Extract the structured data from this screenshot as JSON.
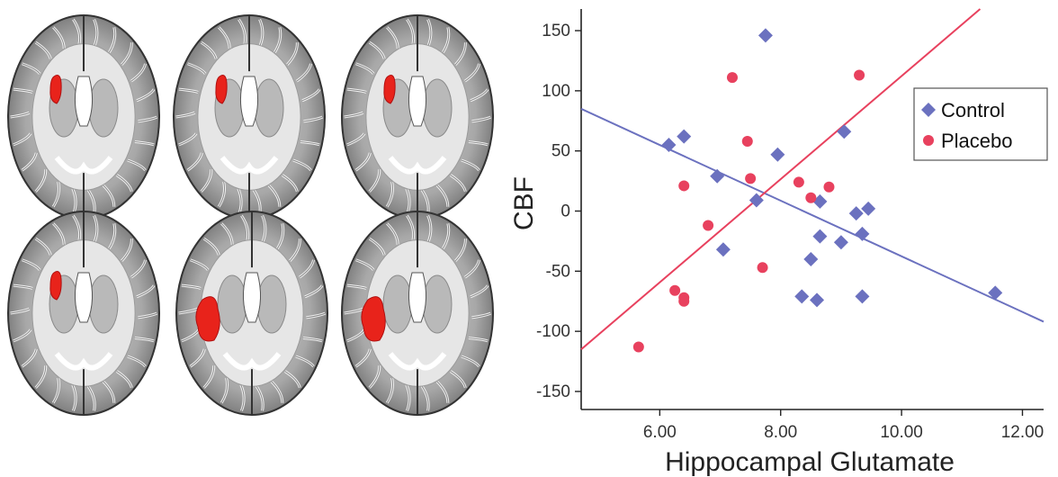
{
  "brain_panel": {
    "slices": [
      {
        "name": "slice-1",
        "lesion": "small"
      },
      {
        "name": "slice-2",
        "lesion": "small"
      },
      {
        "name": "slice-3",
        "lesion": "small"
      },
      {
        "name": "slice-4",
        "lesion": "small"
      },
      {
        "name": "slice-5",
        "lesion": "large"
      },
      {
        "name": "slice-6",
        "lesion": "large"
      }
    ],
    "highlight_color": "#e8231b"
  },
  "chart_data": {
    "type": "scatter",
    "title": "",
    "xlabel": "Hippocampal Glutamate",
    "ylabel": "CBF",
    "xlim": [
      4.7,
      12.35
    ],
    "ylim": [
      -165,
      168
    ],
    "xticks": [
      6,
      8,
      10,
      12
    ],
    "xtick_labels": [
      "6.00",
      "8.00",
      "10.00",
      "12.00"
    ],
    "yticks": [
      150,
      100,
      50,
      0,
      -50,
      -100,
      -150
    ],
    "ytick_labels": [
      "150",
      "100",
      "50",
      "0",
      "-50",
      "-100",
      "-150"
    ],
    "grid": false,
    "legend": {
      "position": "top-right"
    },
    "series": [
      {
        "name": "Control",
        "color": "#6b71bf",
        "marker": "diamond",
        "x": [
          6.15,
          6.4,
          6.95,
          7.05,
          7.6,
          7.75,
          7.95,
          8.35,
          8.5,
          8.6,
          8.65,
          8.65,
          9.0,
          9.05,
          9.25,
          9.35,
          9.35,
          9.45,
          11.55
        ],
        "y": [
          55,
          62,
          29,
          -32,
          9,
          146,
          47,
          -71,
          -40,
          -74,
          8,
          -21,
          -26,
          66,
          -2,
          -71,
          -19,
          2,
          -68
        ],
        "fit": [
          [
            4.7,
            85
          ],
          [
            12.35,
            -92
          ]
        ]
      },
      {
        "name": "Placebo",
        "color": "#e8415e",
        "marker": "circle",
        "x": [
          5.65,
          6.25,
          6.4,
          6.4,
          6.4,
          6.8,
          7.2,
          7.45,
          7.5,
          7.7,
          8.3,
          8.5,
          8.8,
          9.3
        ],
        "y": [
          -113,
          -66,
          -72,
          -75,
          21,
          -12,
          111,
          58,
          27,
          -47,
          24,
          11,
          20,
          113
        ],
        "fit": [
          [
            4.7,
            -115
          ],
          [
            11.3,
            168
          ]
        ]
      }
    ]
  }
}
